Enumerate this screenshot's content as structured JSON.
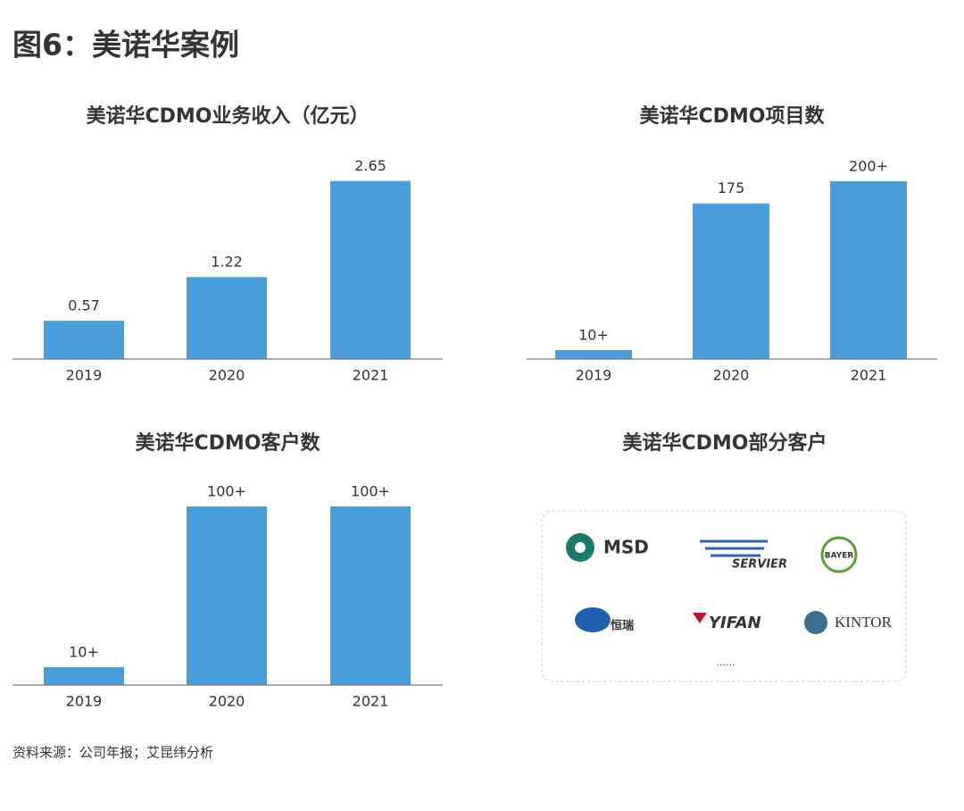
{
  "title": "图6：美诺华案例",
  "chart_data": [
    {
      "type": "bar",
      "title": "美诺华CDMO业务收入（亿元）",
      "categories": [
        "2019",
        "2020",
        "2021"
      ],
      "values": [
        0.57,
        1.22,
        2.65
      ],
      "value_labels": [
        "0.57",
        "1.22",
        "2.65"
      ],
      "color": "#4a9fdb",
      "ylim": [
        0,
        3.15
      ]
    },
    {
      "type": "bar",
      "title": "美诺华CDMO项目数",
      "categories": [
        "2019",
        "2020",
        "2021"
      ],
      "values": [
        10,
        175,
        200
      ],
      "value_labels": [
        "10+",
        "175",
        "200+"
      ],
      "color": "#4a9fdb",
      "ylim": [
        0,
        238
      ]
    },
    {
      "type": "bar",
      "title": "美诺华CDMO客户数",
      "categories": [
        "2019",
        "2020",
        "2021"
      ],
      "values": [
        10,
        100,
        100
      ],
      "value_labels": [
        "10+",
        "100+",
        "100+"
      ],
      "color": "#4a9fdb",
      "ylim": [
        0,
        118.5
      ]
    }
  ],
  "clients": {
    "title": "美诺华CDMO部分客户",
    "logos": [
      "MSD",
      "SERVIER",
      "BAYER",
      "恒瑞",
      "YIFAN",
      "KINTOR"
    ],
    "more": "......"
  },
  "source": "资料来源：公司年报；艾昆纬分析"
}
